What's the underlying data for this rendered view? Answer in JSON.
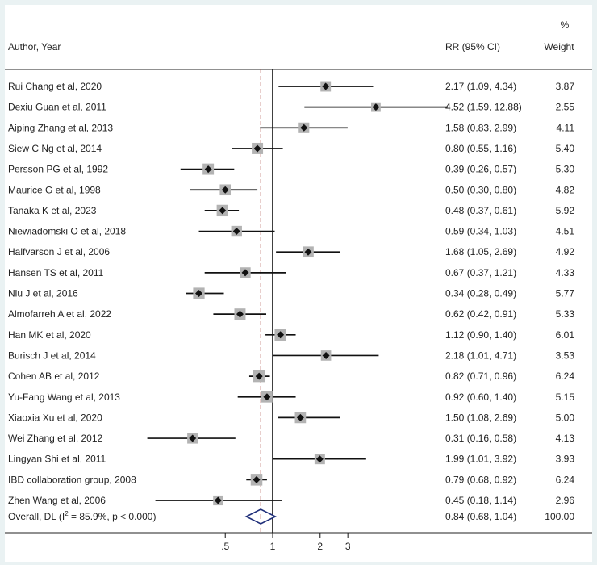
{
  "chart_data": {
    "type": "forest",
    "header": {
      "author_year": "Author,  Year",
      "rr": "RR (95% CI)",
      "percent": "%",
      "weight": "Weight"
    },
    "xscale": "log",
    "xlim": [
      0.15,
      15
    ],
    "null_line": 1,
    "pooled_line": 0.84,
    "xticks": [
      {
        "value": 0.5,
        "label": ".5"
      },
      {
        "value": 1,
        "label": "1"
      },
      {
        "value": 2,
        "label": "2"
      },
      {
        "value": 3,
        "label": "3"
      }
    ],
    "studies": [
      {
        "label": "Rui Chang et al, 2020",
        "rr": 2.17,
        "lo": 1.09,
        "hi": 4.34,
        "rr_text": "2.17 (1.09, 4.34)",
        "weight": "3.87"
      },
      {
        "label": "Dexiu Guan et al, 2011",
        "rr": 4.52,
        "lo": 1.59,
        "hi": 12.88,
        "rr_text": "4.52 (1.59, 12.88)",
        "weight": "2.55"
      },
      {
        "label": "Aiping Zhang et al, 2013",
        "rr": 1.58,
        "lo": 0.83,
        "hi": 2.99,
        "rr_text": "1.58 (0.83, 2.99)",
        "weight": "4.11"
      },
      {
        "label": "Siew C Ng et al, 2014",
        "rr": 0.8,
        "lo": 0.55,
        "hi": 1.16,
        "rr_text": "0.80 (0.55, 1.16)",
        "weight": "5.40"
      },
      {
        "label": "Persson PG et al, 1992",
        "rr": 0.39,
        "lo": 0.26,
        "hi": 0.57,
        "rr_text": "0.39 (0.26, 0.57)",
        "weight": "5.30"
      },
      {
        "label": "Maurice G et al, 1998",
        "rr": 0.5,
        "lo": 0.3,
        "hi": 0.8,
        "rr_text": "0.50 (0.30, 0.80)",
        "weight": "4.82"
      },
      {
        "label": "Tanaka K et al, 2023",
        "rr": 0.48,
        "lo": 0.37,
        "hi": 0.61,
        "rr_text": "0.48 (0.37, 0.61)",
        "weight": "5.92"
      },
      {
        "label": "Niewiadomski O et al, 2018",
        "rr": 0.59,
        "lo": 0.34,
        "hi": 1.03,
        "rr_text": "0.59 (0.34, 1.03)",
        "weight": "4.51"
      },
      {
        "label": "Halfvarson J et al, 2006",
        "rr": 1.68,
        "lo": 1.05,
        "hi": 2.69,
        "rr_text": "1.68 (1.05, 2.69)",
        "weight": "4.92"
      },
      {
        "label": "Hansen TS et al, 2011",
        "rr": 0.67,
        "lo": 0.37,
        "hi": 1.21,
        "rr_text": "0.67 (0.37, 1.21)",
        "weight": "4.33"
      },
      {
        "label": "Niu J et al, 2016",
        "rr": 0.34,
        "lo": 0.28,
        "hi": 0.49,
        "rr_text": "0.34 (0.28, 0.49)",
        "weight": "5.77"
      },
      {
        "label": "Almofarreh A et al, 2022",
        "rr": 0.62,
        "lo": 0.42,
        "hi": 0.91,
        "rr_text": "0.62 (0.42, 0.91)",
        "weight": "5.33"
      },
      {
        "label": "Han MK et al, 2020",
        "rr": 1.12,
        "lo": 0.9,
        "hi": 1.4,
        "rr_text": "1.12 (0.90, 1.40)",
        "weight": "6.01"
      },
      {
        "label": "Burisch J et al, 2014",
        "rr": 2.18,
        "lo": 1.01,
        "hi": 4.71,
        "rr_text": "2.18 (1.01, 4.71)",
        "weight": "3.53"
      },
      {
        "label": "Cohen AB et al, 2012",
        "rr": 0.82,
        "lo": 0.71,
        "hi": 0.96,
        "rr_text": "0.82 (0.71, 0.96)",
        "weight": "6.24"
      },
      {
        "label": "Yu-Fang Wang et al, 2013",
        "rr": 0.92,
        "lo": 0.6,
        "hi": 1.4,
        "rr_text": "0.92 (0.60, 1.40)",
        "weight": "5.15"
      },
      {
        "label": "Xiaoxia Xu et al, 2020",
        "rr": 1.5,
        "lo": 1.08,
        "hi": 2.69,
        "rr_text": "1.50 (1.08, 2.69)",
        "weight": "5.00"
      },
      {
        "label": "Wei Zhang et al, 2012",
        "rr": 0.31,
        "lo": 0.16,
        "hi": 0.58,
        "rr_text": "0.31 (0.16, 0.58)",
        "weight": "4.13"
      },
      {
        "label": "Lingyan Shi et al, 2011",
        "rr": 1.99,
        "lo": 1.01,
        "hi": 3.92,
        "rr_text": "1.99 (1.01, 3.92)",
        "weight": "3.93"
      },
      {
        "label": "IBD collaboration group, 2008",
        "rr": 0.79,
        "lo": 0.68,
        "hi": 0.92,
        "rr_text": "0.79 (0.68, 0.92)",
        "weight": "6.24"
      },
      {
        "label": "Zhen Wang et al, 2006",
        "rr": 0.45,
        "lo": 0.18,
        "hi": 1.14,
        "rr_text": "0.45 (0.18, 1.14)",
        "weight": "2.96"
      }
    ],
    "overall": {
      "label_prefix": "Overall, DL (I",
      "label_sup": "2",
      "label_suffix": " = 85.9%, p < 0.000)",
      "rr": 0.84,
      "lo": 0.68,
      "hi": 1.04,
      "rr_text": "0.84 (0.68, 1.04)",
      "weight": "100.00"
    }
  }
}
